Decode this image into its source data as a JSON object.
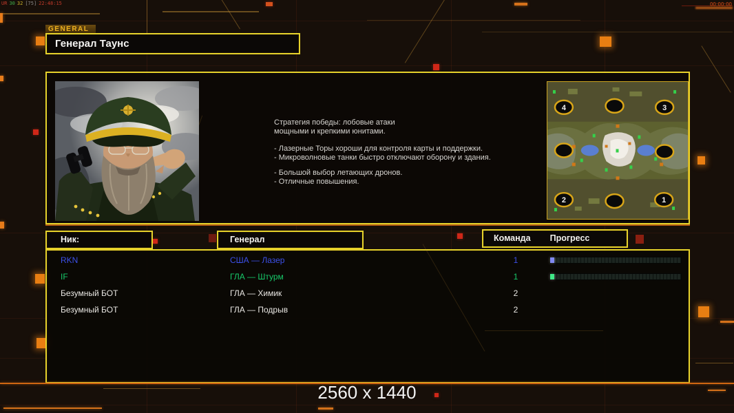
{
  "hud": {
    "perf_overlay": [
      {
        "text": "UR",
        "color": "#c23a2a"
      },
      {
        "text": "30",
        "color": "#3fae4a"
      },
      {
        "text": "32",
        "color": "#c8b02a"
      },
      {
        "text": "[75]",
        "color": "#8a8a8a"
      },
      {
        "text": "22:48:15",
        "color": "#c23a2a"
      }
    ],
    "timer": "00:00:00",
    "resolution_label": "2560 x 1440"
  },
  "header": {
    "tab_label": "GENERAL",
    "title": "Генерал Таунс"
  },
  "info_panel": {
    "portrait_icon": "general-portrait",
    "strategy_lines": [
      "Стратегия победы: лобовые атаки",
      "мощными и крепкими юнитами.",
      "- Лазерные Торы хороши для контроля карты и поддержки.",
      "- Микроволновые танки быстро отключают оборону и здания.",
      "- Большой выбор летающих дронов.",
      "- Отличные повышения."
    ],
    "minimap": {
      "spawns": [
        "4",
        "",
        "3",
        "",
        "",
        "2",
        "",
        "1"
      ]
    }
  },
  "table": {
    "headers": {
      "nick": "Ник:",
      "general": "Генерал",
      "team": "Команда",
      "progress": "Прогресс"
    },
    "rows": [
      {
        "nick": "RKN",
        "general": "США — Лазер",
        "team": "1",
        "color": "#3c50e8",
        "progress": 3,
        "progress_color": "#8089f0"
      },
      {
        "nick": "IF",
        "general": "ГЛА — Штурм",
        "team": "1",
        "color": "#17c96a",
        "progress": 3,
        "progress_color": "#3fe887"
      },
      {
        "nick": "Безумный БОТ",
        "general": "ГЛА — Химик",
        "team": "2",
        "color": "#e8e6e2"
      },
      {
        "nick": "Безумный БОТ",
        "general": "ГЛА — Подрыв",
        "team": "2",
        "color": "#e8e6e2"
      }
    ]
  },
  "colors": {
    "panel_border": "#e6d22b",
    "accent_orange": "#d4711a",
    "background": "#170f09"
  }
}
